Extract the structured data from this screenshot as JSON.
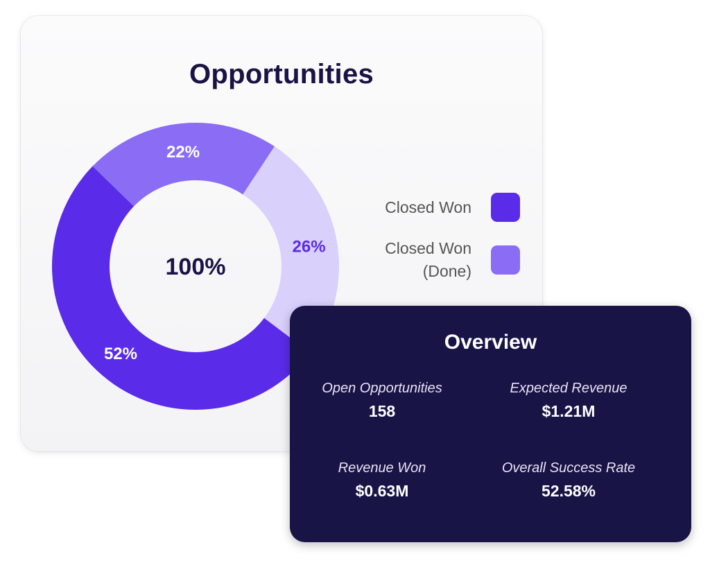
{
  "opportunities": {
    "title": "Opportunities",
    "center_label": "100%",
    "legend": [
      {
        "label": "Closed Won",
        "color": "#5a2be8"
      },
      {
        "label": "Closed Won (Done)",
        "color": "#8a6cf5"
      }
    ]
  },
  "overview": {
    "title": "Overview",
    "stats": [
      {
        "label": "Open Opportunities",
        "value": "158"
      },
      {
        "label": "Expected Revenue",
        "value": "$1.21M"
      },
      {
        "label": "Revenue Won",
        "value": "$0.63M"
      },
      {
        "label": "Overall Success Rate",
        "value": "52.58%"
      }
    ]
  },
  "chart_data": {
    "type": "pie",
    "donut": true,
    "title": "Opportunities",
    "center_label": "100%",
    "slices": [
      {
        "value": 52,
        "label": "52%",
        "color": "#5a2be8",
        "label_color": "#ffffff"
      },
      {
        "value": 22,
        "label": "22%",
        "color": "#8a6cf5",
        "label_color": "#ffffff"
      },
      {
        "value": 26,
        "label": "26%",
        "color": "#d9d0fb",
        "label_color": "#5a2be8"
      }
    ],
    "legend": [
      "Closed Won",
      "Closed Won (Done)"
    ],
    "legend_position": "right"
  }
}
